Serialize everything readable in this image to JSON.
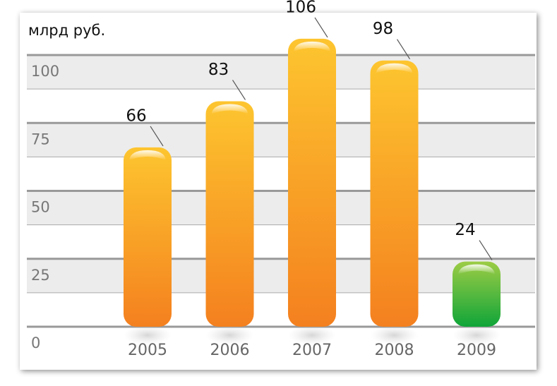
{
  "chart_data": {
    "type": "bar",
    "unit_label": "млрд руб.",
    "categories": [
      "2005",
      "2006",
      "2007",
      "2008",
      "2009"
    ],
    "values": [
      66,
      83,
      106,
      98,
      24
    ],
    "colors": [
      "orange",
      "orange",
      "orange",
      "orange",
      "green"
    ],
    "ylim": [
      0,
      110
    ],
    "yticks": [
      0,
      25,
      50,
      75,
      100
    ],
    "grid": true
  }
}
